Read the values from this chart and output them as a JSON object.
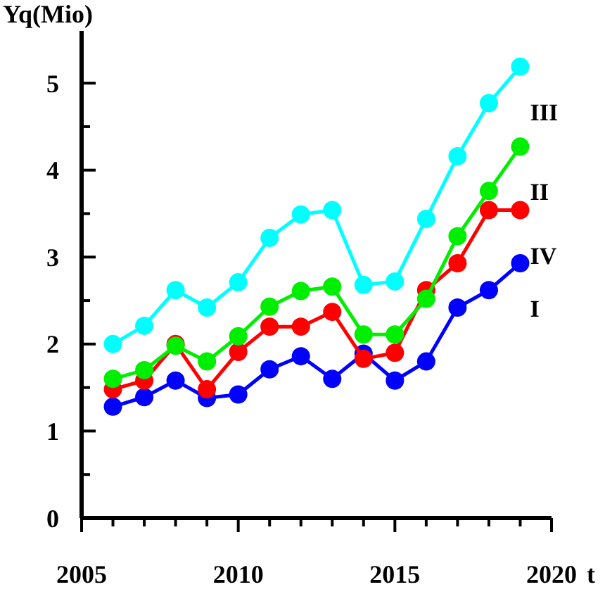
{
  "chart_data": {
    "type": "line",
    "ylabel": "Yq(Mio)",
    "xlabel": "t",
    "x": [
      2006,
      2007,
      2008,
      2009,
      2010,
      2011,
      2012,
      2013,
      2014,
      2015,
      2016,
      2017,
      2018,
      2019
    ],
    "xlim": [
      2005,
      2020
    ],
    "xticks": [
      2005,
      {
        "value": 2006,
        "label": null
      },
      {
        "value": 2007,
        "label": null
      },
      {
        "value": 2008,
        "label": null
      },
      {
        "value": 2009,
        "label": null
      },
      2010,
      {
        "value": 2011,
        "label": null
      },
      {
        "value": 2012,
        "label": null
      },
      {
        "value": 2013,
        "label": null
      },
      {
        "value": 2014,
        "label": null
      },
      2015,
      {
        "value": 2016,
        "label": null
      },
      {
        "value": 2017,
        "label": null
      },
      {
        "value": 2018,
        "label": null
      },
      {
        "value": 2019,
        "label": null
      },
      2020
    ],
    "ylim": [
      0,
      5.6
    ],
    "yticks": [
      0,
      {
        "value": 0.5,
        "label": null
      },
      1,
      {
        "value": 1.5,
        "label": null
      },
      2,
      {
        "value": 2.5,
        "label": null
      },
      3,
      {
        "value": 3.5,
        "label": null
      },
      4,
      {
        "value": 4.5,
        "label": null
      },
      5
    ],
    "grid": false,
    "legend": false,
    "marker": "circle",
    "line_style": "solid",
    "series": [
      {
        "name": "I",
        "color": "#0000ff",
        "values": [
          1.28,
          1.39,
          1.58,
          1.38,
          1.42,
          1.71,
          1.86,
          1.6,
          1.89,
          1.58,
          1.8,
          2.42,
          2.62,
          2.93
        ]
      },
      {
        "name": "IV",
        "color": "#ff0000",
        "values": [
          1.48,
          1.58,
          2.0,
          1.48,
          1.91,
          2.2,
          2.2,
          2.37,
          1.83,
          1.9,
          2.62,
          2.93,
          3.54,
          3.54
        ]
      },
      {
        "name": "II",
        "color": "#00ee00",
        "values": [
          1.6,
          1.7,
          1.98,
          1.8,
          2.09,
          2.43,
          2.61,
          2.66,
          2.11,
          2.11,
          2.52,
          3.24,
          3.76,
          4.27
        ]
      },
      {
        "name": "III",
        "color": "#00ffff",
        "values": [
          2.0,
          2.21,
          2.62,
          2.42,
          2.71,
          3.22,
          3.49,
          3.54,
          2.68,
          2.72,
          3.44,
          4.16,
          4.77,
          5.19
        ]
      }
    ]
  }
}
